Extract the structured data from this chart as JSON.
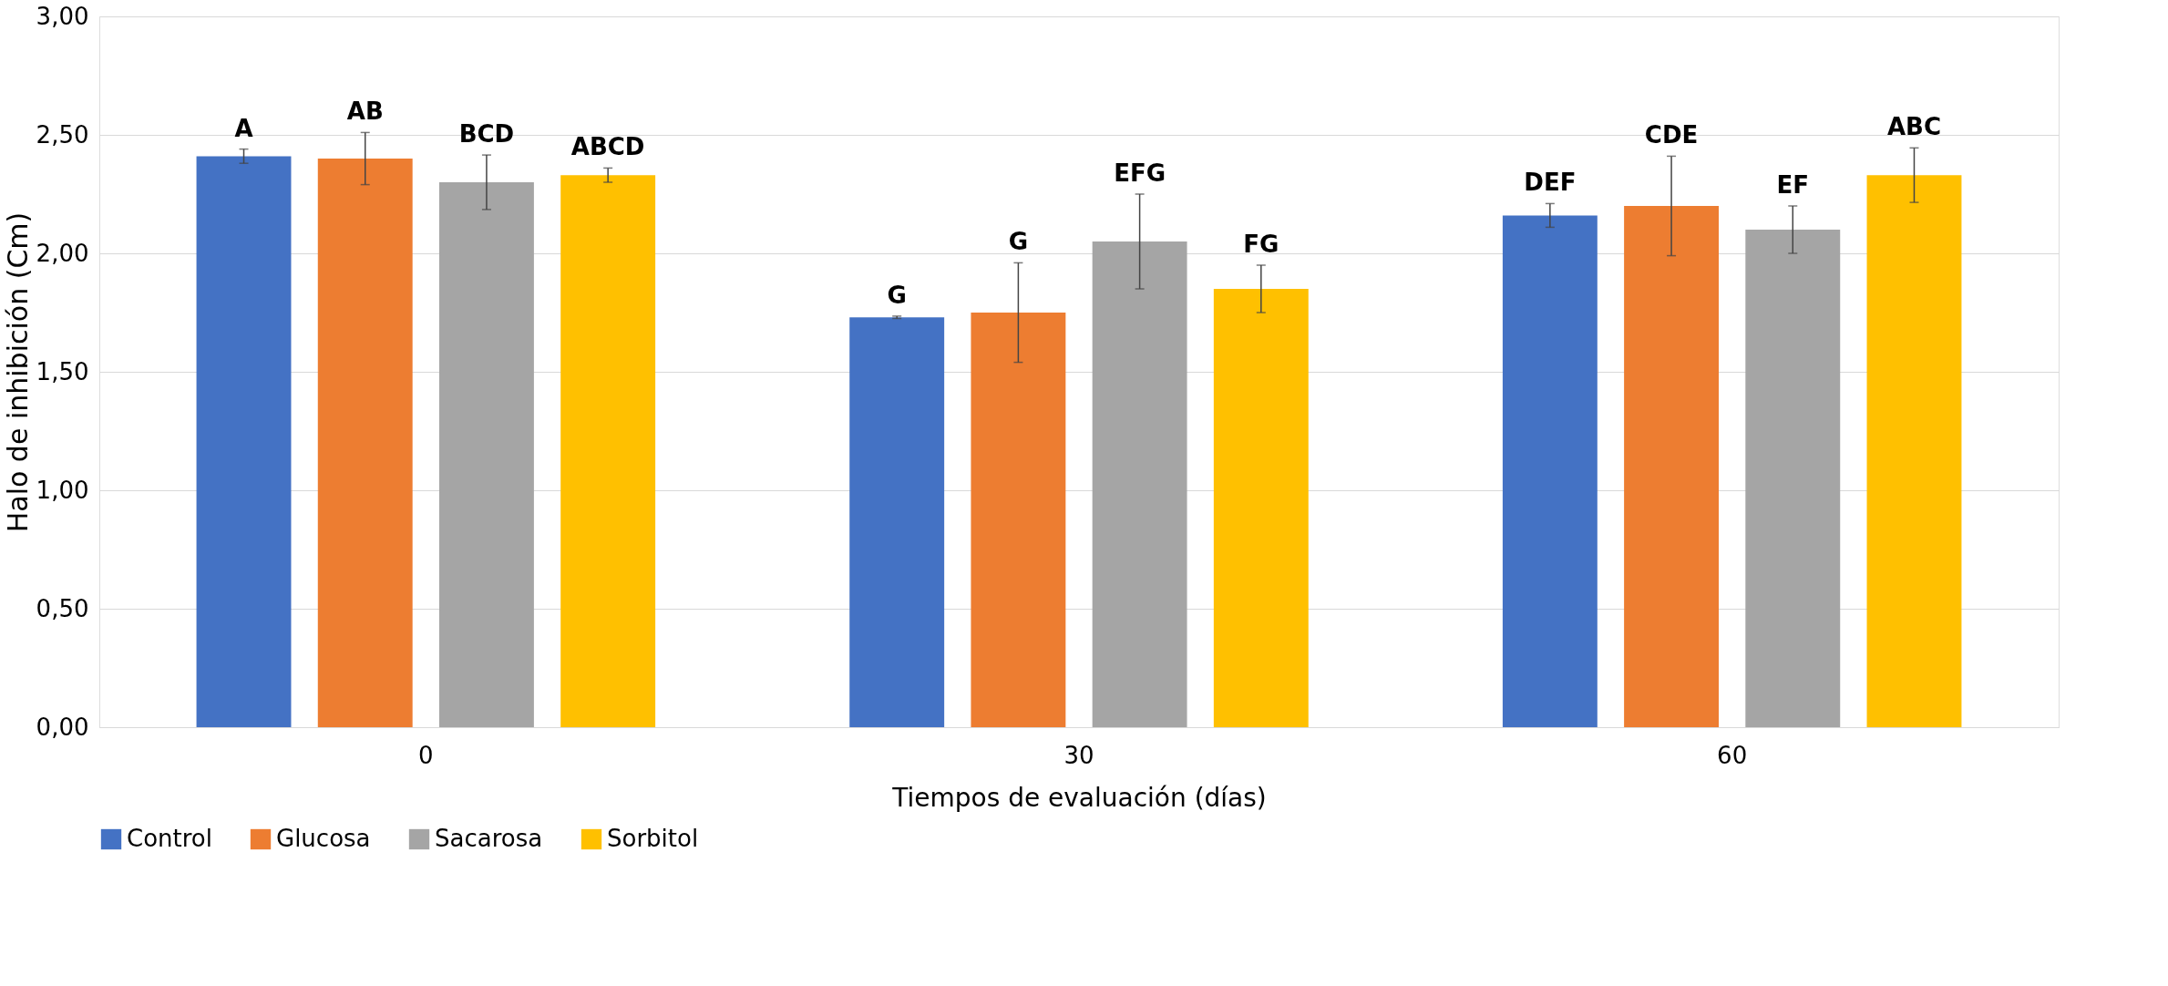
{
  "chart_data": {
    "type": "bar",
    "xlabel": "Tiempos de evaluación (días)",
    "ylabel": "Halo de inhibición (Cm)",
    "categories": [
      "0",
      "30",
      "60"
    ],
    "series": [
      {
        "name": "Control",
        "color": "#4472c4",
        "values": [
          2.41,
          1.73,
          2.16
        ],
        "errors": [
          0.03,
          0.005,
          0.05
        ],
        "value_labels": [
          "A",
          "G",
          "DEF"
        ]
      },
      {
        "name": "Glucosa",
        "color": "#ed7d31",
        "values": [
          2.4,
          1.75,
          2.2
        ],
        "errors": [
          0.11,
          0.21,
          0.21
        ],
        "value_labels": [
          "AB",
          "G",
          "CDE"
        ]
      },
      {
        "name": "Sacarosa",
        "color": "#a5a5a5",
        "values": [
          2.3,
          2.05,
          2.1
        ],
        "errors": [
          0.115,
          0.2,
          0.1
        ],
        "value_labels": [
          "BCD",
          "EFG",
          "EF"
        ]
      },
      {
        "name": "Sorbitol",
        "color": "#ffc000",
        "values": [
          2.33,
          1.85,
          2.33
        ],
        "errors": [
          0.03,
          0.1,
          0.115
        ],
        "value_labels": [
          "ABCD",
          "FG",
          "ABC"
        ]
      }
    ],
    "ylim": [
      0,
      3
    ],
    "yticks": [
      {
        "value": 0,
        "label": "0,00"
      },
      {
        "value": 0.5,
        "label": "0,50"
      },
      {
        "value": 1,
        "label": "1,00"
      },
      {
        "value": 1.5,
        "label": "1,50"
      },
      {
        "value": 2,
        "label": "2,00"
      },
      {
        "value": 2.5,
        "label": "2,50"
      },
      {
        "value": 3,
        "label": "3,00"
      }
    ],
    "grid": "y",
    "legend": "bottom"
  }
}
